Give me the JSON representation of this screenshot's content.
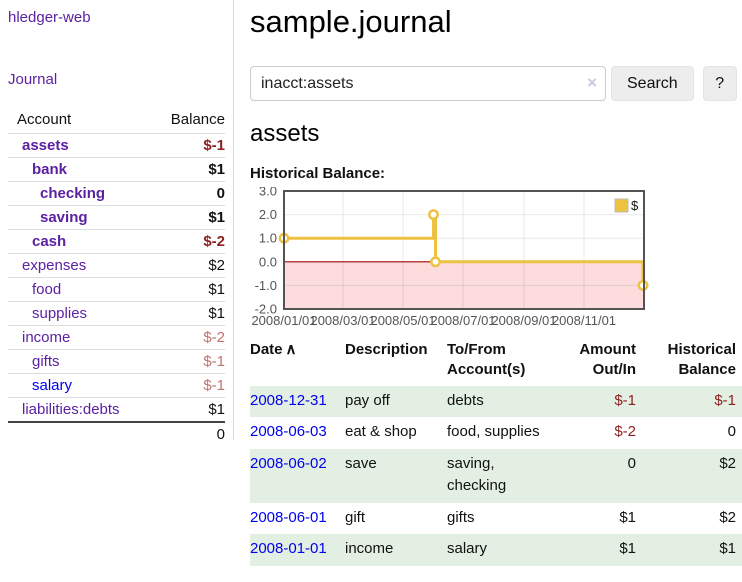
{
  "colors": {
    "purple": "#5b21a2",
    "blue": "#0000ee",
    "dark_red": "#8e1f1f",
    "soft_red": "#c4716f",
    "row_green": "#e2efe2",
    "chart_gold": "#edc240",
    "chart_pink": "#fcdcdc",
    "zero_line_red": "#aa0000",
    "chart_border": "#545454"
  },
  "sidebar": {
    "brand": "hledger-web",
    "nav": {
      "journal": "Journal"
    },
    "header": {
      "account": "Account",
      "balance": "Balance"
    },
    "accounts": [
      {
        "name": "assets",
        "indent": 1,
        "balance": "$-1",
        "emphasis": true,
        "balance_color": "dark-red"
      },
      {
        "name": "bank",
        "indent": 2,
        "balance": "$1",
        "emphasis": true,
        "balance_color": "black"
      },
      {
        "name": "checking",
        "indent": 3,
        "balance": "0",
        "emphasis": true,
        "balance_color": "black"
      },
      {
        "name": "saving",
        "indent": 3,
        "balance": "$1",
        "emphasis": true,
        "balance_color": "black"
      },
      {
        "name": "cash",
        "indent": 2,
        "balance": "$-2",
        "emphasis": true,
        "balance_color": "dark-red"
      },
      {
        "name": "expenses",
        "indent": 1,
        "balance": "$2",
        "emphasis": false,
        "balance_color": "black"
      },
      {
        "name": "food",
        "indent": 2,
        "balance": "$1",
        "emphasis": false,
        "balance_color": "black"
      },
      {
        "name": "supplies",
        "indent": 2,
        "balance": "$1",
        "emphasis": false,
        "balance_color": "black"
      },
      {
        "name": "income",
        "indent": 1,
        "balance": "$-2",
        "emphasis": false,
        "balance_color": "soft-red"
      },
      {
        "name": "gifts",
        "indent": 2,
        "balance": "$-1",
        "emphasis": false,
        "balance_color": "soft-red"
      },
      {
        "name": "salary",
        "indent": 2,
        "balance": "$-1",
        "emphasis": false,
        "balance_color": "soft-red",
        "link_color": "blue"
      },
      {
        "name": "liabilities:debts",
        "indent": 1,
        "balance": "$1",
        "emphasis": false,
        "balance_color": "black"
      }
    ],
    "total": "0"
  },
  "main": {
    "title": "sample.journal",
    "search": {
      "value": "inacct:assets",
      "clear_icon": "×",
      "button_label": "Search",
      "help_label": "?"
    },
    "account_heading": "assets"
  },
  "chart_data": {
    "type": "line",
    "mode": "step",
    "title": "Historical Balance:",
    "legend": {
      "label": "$",
      "position": "top-right"
    },
    "series": [
      {
        "name": "$",
        "color": "#edc240",
        "points": [
          {
            "date": "2008-01-01",
            "value": 1
          },
          {
            "date": "2008-06-01",
            "value": 2
          },
          {
            "date": "2008-06-03",
            "value": 0
          },
          {
            "date": "2008-12-31",
            "value": -1
          }
        ]
      }
    ],
    "x_range": [
      "2008-01-01",
      "2009-01-01"
    ],
    "x_ticks": [
      "2008/01/01",
      "2008/03/01",
      "2008/05/01",
      "2008/07/01",
      "2008/09/01",
      "2008/11/01"
    ],
    "y_ticks": [
      3.0,
      2.0,
      1.0,
      0.0,
      -1.0,
      -2.0
    ],
    "y_range": [
      -2,
      3
    ],
    "grid": true,
    "negative_region_fill": "#fcdcdc",
    "zero_line_color": "#aa0000"
  },
  "transactions": {
    "sort_icon": "∧",
    "headers": [
      {
        "label": "Date",
        "align": "left",
        "sorted": true
      },
      {
        "label": "Description",
        "align": "left"
      },
      {
        "label": "To/From Account(s)",
        "align": "left"
      },
      {
        "label": "Amount Out/In",
        "align": "right"
      },
      {
        "label": "Historical Balance",
        "align": "right"
      }
    ],
    "rows": [
      {
        "date": "2008-12-31",
        "description": "pay off",
        "accounts": "debts",
        "amount": "$-1",
        "amount_negative": true,
        "balance": "$-1",
        "balance_negative": true
      },
      {
        "date": "2008-06-03",
        "description": "eat & shop",
        "accounts": "food, supplies",
        "amount": "$-2",
        "amount_negative": true,
        "balance": "0",
        "balance_negative": false
      },
      {
        "date": "2008-06-02",
        "description": "save",
        "accounts": "saving, checking",
        "amount": "0",
        "amount_negative": false,
        "balance": "$2",
        "balance_negative": false
      },
      {
        "date": "2008-06-01",
        "description": "gift",
        "accounts": "gifts",
        "amount": "$1",
        "amount_negative": false,
        "balance": "$2",
        "balance_negative": false
      },
      {
        "date": "2008-01-01",
        "description": "income",
        "accounts": "salary",
        "amount": "$1",
        "amount_negative": false,
        "balance": "$1",
        "balance_negative": false
      }
    ]
  }
}
